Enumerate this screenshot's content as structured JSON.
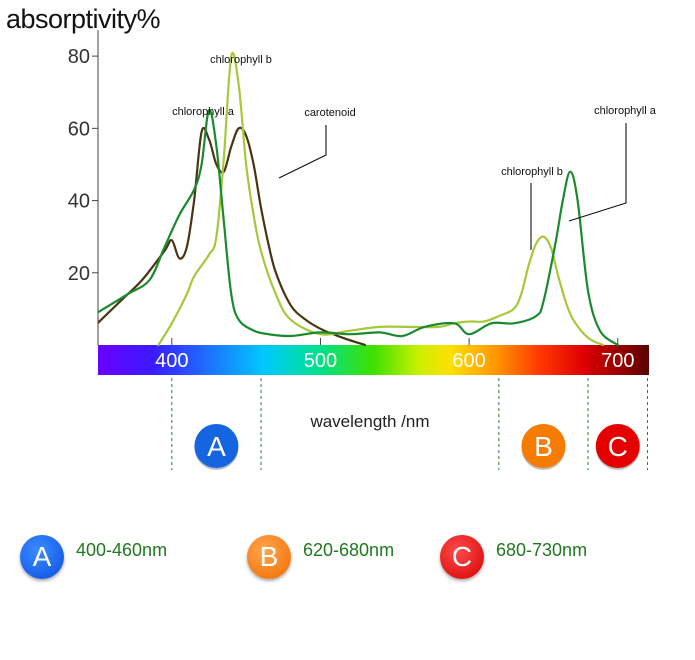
{
  "chart_data": {
    "type": "line",
    "title": "absorptivity%",
    "xlabel": "wavelength /nm",
    "ylabel": "absorptivity%",
    "xlim": [
      350,
      720
    ],
    "ylim": [
      0,
      90
    ],
    "x_ticks": [
      "400",
      "500",
      "600",
      "700"
    ],
    "y_ticks": [
      "20",
      "40",
      "60",
      "80"
    ],
    "series": [
      {
        "name": "chlorophyll a",
        "color": "#1a8a2e",
        "x": [
          350,
          370,
          385,
          395,
          405,
          415,
          420,
          425,
          430,
          435,
          440,
          445,
          455,
          465,
          480,
          500,
          520,
          540,
          555,
          570,
          590,
          600,
          615,
          630,
          645,
          650,
          658,
          663,
          668,
          673,
          680,
          688,
          700
        ],
        "y": [
          9,
          14,
          18,
          27,
          36,
          43,
          50,
          65,
          55,
          34,
          14,
          7,
          4,
          3,
          2.5,
          3.5,
          3,
          3.5,
          2.5,
          5,
          6,
          3,
          6,
          6,
          8,
          12,
          28,
          40,
          48,
          40,
          15,
          4,
          0
        ]
      },
      {
        "name": "chlorophyll b",
        "color": "#a6c83a",
        "x": [
          391,
          400,
          410,
          415,
          425,
          430,
          435,
          440,
          445,
          450,
          455,
          460,
          470,
          480,
          500,
          520,
          540,
          560,
          580,
          590,
          600,
          610,
          620,
          630,
          635,
          640,
          645,
          650,
          655,
          660,
          665,
          670,
          680,
          690
        ],
        "y": [
          0,
          6,
          14,
          19,
          25,
          30,
          52,
          80,
          72,
          50,
          36,
          26,
          14,
          7,
          3,
          4,
          5,
          5,
          5,
          6,
          6.5,
          6.5,
          8,
          10,
          14,
          22,
          28,
          30,
          27,
          19,
          12,
          7,
          2,
          0
        ]
      },
      {
        "name": "carotenoid",
        "color": "#4a3412",
        "x": [
          350,
          365,
          380,
          395,
          400,
          405,
          410,
          415,
          420,
          425,
          430,
          435,
          440,
          445,
          450,
          455,
          460,
          465,
          470,
          480,
          490,
          500,
          515,
          530
        ],
        "y": [
          6,
          12,
          18,
          26,
          29,
          24,
          27,
          40,
          59,
          57,
          50,
          48,
          55,
          60,
          58,
          50,
          38,
          28,
          20,
          11,
          7,
          4.5,
          2,
          0
        ]
      }
    ],
    "annotations": [
      {
        "text": "chlorophyll a",
        "target": "blue-region peak"
      },
      {
        "text": "chlorophyll b",
        "target": "blue-region peak"
      },
      {
        "text": "carotenoid",
        "target": "carotenoid peak"
      },
      {
        "text": "chlorophyll b",
        "target": "red-region peak"
      },
      {
        "text": "chlorophyll a",
        "target": "red-region peak"
      }
    ],
    "regions": [
      {
        "badge": "A",
        "range": [
          400,
          460
        ],
        "color": "#1565e0"
      },
      {
        "badge": "B",
        "range": [
          620,
          680
        ],
        "color": "#f57c00"
      },
      {
        "badge": "C",
        "range": [
          680,
          730
        ],
        "color": "#e50000"
      }
    ],
    "spectrum_bar": true
  },
  "legend": [
    {
      "badge": "A",
      "text": "400-460nm"
    },
    {
      "badge": "B",
      "text": "620-680nm"
    },
    {
      "badge": "C",
      "text": "680-730nm"
    }
  ]
}
